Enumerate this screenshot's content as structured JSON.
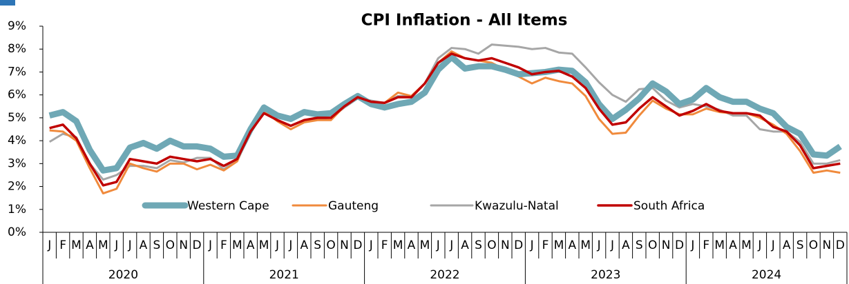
{
  "chart_data": {
    "type": "line",
    "title": "CPI Inflation - All Items",
    "categories": [
      "J",
      "F",
      "M",
      "A",
      "M",
      "J",
      "J",
      "A",
      "S",
      "O",
      "N",
      "D",
      "J",
      "F",
      "M",
      "A",
      "M",
      "J",
      "J",
      "A",
      "S",
      "O",
      "N",
      "D",
      "J",
      "F",
      "M",
      "A",
      "M",
      "J",
      "J",
      "A",
      "S",
      "O",
      "N",
      "D",
      "J",
      "F",
      "M",
      "A",
      "M",
      "J",
      "J",
      "A",
      "S",
      "O",
      "N",
      "D",
      "J",
      "F",
      "M",
      "A",
      "M",
      "J",
      "J",
      "A",
      "S",
      "O",
      "N",
      "D"
    ],
    "years": [
      "2020",
      "2021",
      "2022",
      "2023",
      "2024"
    ],
    "ylim": [
      0,
      9
    ],
    "yticks": [
      {
        "value": 0,
        "label": "0%"
      },
      {
        "value": 1,
        "label": "1%"
      },
      {
        "value": 2,
        "label": "2%"
      },
      {
        "value": 3,
        "label": "3%"
      },
      {
        "value": 4,
        "label": "4%"
      },
      {
        "value": 5,
        "label": "5%"
      },
      {
        "value": 6,
        "label": "6%"
      },
      {
        "value": 7,
        "label": "7%"
      },
      {
        "value": 8,
        "label": "8%"
      },
      {
        "value": 9,
        "label": "9%"
      }
    ],
    "grid": false,
    "legend": "bottom",
    "series": [
      {
        "name": "Western Cape",
        "color": "#6fa8b5",
        "values": [
          5.1,
          5.25,
          4.85,
          3.6,
          2.7,
          2.8,
          3.7,
          3.9,
          3.65,
          4.0,
          3.75,
          3.75,
          3.65,
          3.3,
          3.35,
          4.5,
          5.45,
          5.1,
          4.95,
          5.25,
          5.15,
          5.2,
          5.6,
          5.95,
          5.6,
          5.45,
          5.6,
          5.7,
          6.1,
          7.1,
          7.65,
          7.15,
          7.25,
          7.25,
          7.1,
          6.9,
          6.95,
          7.0,
          7.1,
          7.05,
          6.55,
          5.6,
          4.95,
          5.35,
          5.85,
          6.5,
          6.15,
          5.6,
          5.8,
          6.3,
          5.9,
          5.7,
          5.7,
          5.4,
          5.2,
          4.6,
          4.3,
          3.4,
          3.35,
          3.75
        ]
      },
      {
        "name": "Gauteng",
        "color": "#f08a3c",
        "values": [
          4.45,
          4.4,
          4.0,
          2.8,
          1.7,
          1.9,
          3.0,
          2.8,
          2.65,
          3.0,
          3.0,
          2.75,
          2.95,
          2.7,
          3.1,
          4.4,
          5.3,
          4.85,
          4.5,
          4.8,
          4.9,
          4.9,
          5.5,
          5.85,
          5.7,
          5.65,
          6.1,
          5.95,
          6.5,
          7.4,
          7.9,
          7.6,
          7.5,
          7.4,
          7.1,
          6.8,
          6.5,
          6.75,
          6.6,
          6.5,
          5.95,
          4.95,
          4.3,
          4.35,
          5.1,
          5.75,
          5.4,
          5.15,
          5.15,
          5.4,
          5.25,
          5.2,
          5.2,
          5.0,
          4.7,
          4.3,
          3.55,
          2.6,
          2.7,
          2.6
        ]
      },
      {
        "name": "Kwazulu-Natal",
        "color": "#a6a6a6",
        "values": [
          3.95,
          4.3,
          4.15,
          3.0,
          2.3,
          2.5,
          2.9,
          2.9,
          2.8,
          3.15,
          3.05,
          3.25,
          3.25,
          2.75,
          3.2,
          4.4,
          5.2,
          4.9,
          4.65,
          4.9,
          4.95,
          5.0,
          5.45,
          5.85,
          5.75,
          5.65,
          5.95,
          5.95,
          6.5,
          7.6,
          8.05,
          8.0,
          7.8,
          8.2,
          8.15,
          8.1,
          8.0,
          8.05,
          7.85,
          7.8,
          7.2,
          6.55,
          6.0,
          5.7,
          6.25,
          6.3,
          5.75,
          5.45,
          5.6,
          5.5,
          5.35,
          5.1,
          5.1,
          4.5,
          4.4,
          4.4,
          3.95,
          3.0,
          3.0,
          3.15
        ]
      },
      {
        "name": "South Africa",
        "color": "#c00000",
        "values": [
          4.55,
          4.7,
          4.1,
          3.0,
          2.05,
          2.2,
          3.2,
          3.1,
          3.0,
          3.3,
          3.2,
          3.1,
          3.2,
          2.9,
          3.2,
          4.4,
          5.2,
          4.9,
          4.65,
          4.9,
          5.0,
          5.0,
          5.5,
          5.9,
          5.7,
          5.65,
          5.9,
          5.9,
          6.5,
          7.4,
          7.8,
          7.6,
          7.5,
          7.6,
          7.4,
          7.2,
          6.9,
          7.0,
          7.05,
          6.8,
          6.3,
          5.4,
          4.7,
          4.8,
          5.4,
          5.9,
          5.5,
          5.1,
          5.3,
          5.6,
          5.3,
          5.2,
          5.2,
          5.1,
          4.6,
          4.4,
          3.8,
          2.8,
          2.9,
          3.0
        ]
      }
    ]
  }
}
